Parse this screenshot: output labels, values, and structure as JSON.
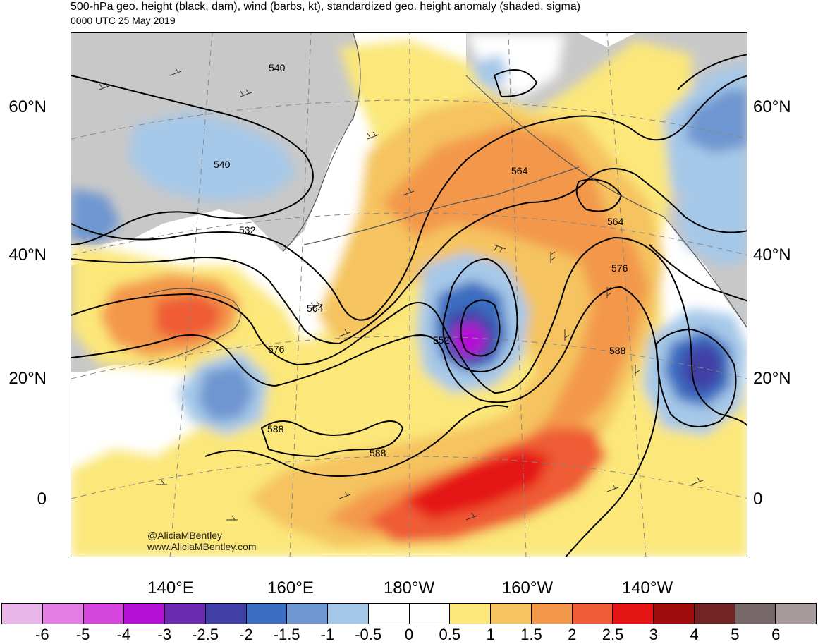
{
  "header": {
    "title": "500-hPa geo. height (black, dam), wind (barbs, kt), standardized geo. height anomaly (shaded, sigma)",
    "subtitle": "0000 UTC 25 May 2019"
  },
  "map": {
    "latitude_labels": [
      "60°N",
      "40°N",
      "20°N",
      "0"
    ],
    "longitude_labels": [
      "140°E",
      "160°E",
      "180°W",
      "160°W",
      "140°W"
    ],
    "contour_labels": [
      "540",
      "540",
      "532",
      "564",
      "576",
      "552",
      "564",
      "564",
      "576",
      "588",
      "588",
      "588"
    ],
    "credit_handle": "@AliciaMBentley",
    "credit_url": "www.AliciaMBentley.com",
    "colors": {
      "land": "#c8c8c8",
      "coastline": "#555555",
      "contour": "#000000",
      "gridline": "#888888"
    }
  },
  "colorbar": {
    "labels": [
      "-6",
      "-5",
      "-4",
      "-3",
      "-2.5",
      "-2",
      "-1.5",
      "-1",
      "-0.5",
      "0",
      "0.5",
      "1",
      "1.5",
      "2",
      "2.5",
      "3",
      "4",
      "5",
      "6"
    ],
    "colors": [
      "#e9b6e9",
      "#e47ee4",
      "#d547dc",
      "#b411d6",
      "#6b2bb0",
      "#3f3fa5",
      "#3b6dc0",
      "#6e96d0",
      "#a6c8e8",
      "#ffffff",
      "#ffffff",
      "#fbe77a",
      "#f5c35f",
      "#f3984b",
      "#ef5b35",
      "#e51515",
      "#a00b0b",
      "#722424",
      "#766868",
      "#a69a9a"
    ]
  }
}
